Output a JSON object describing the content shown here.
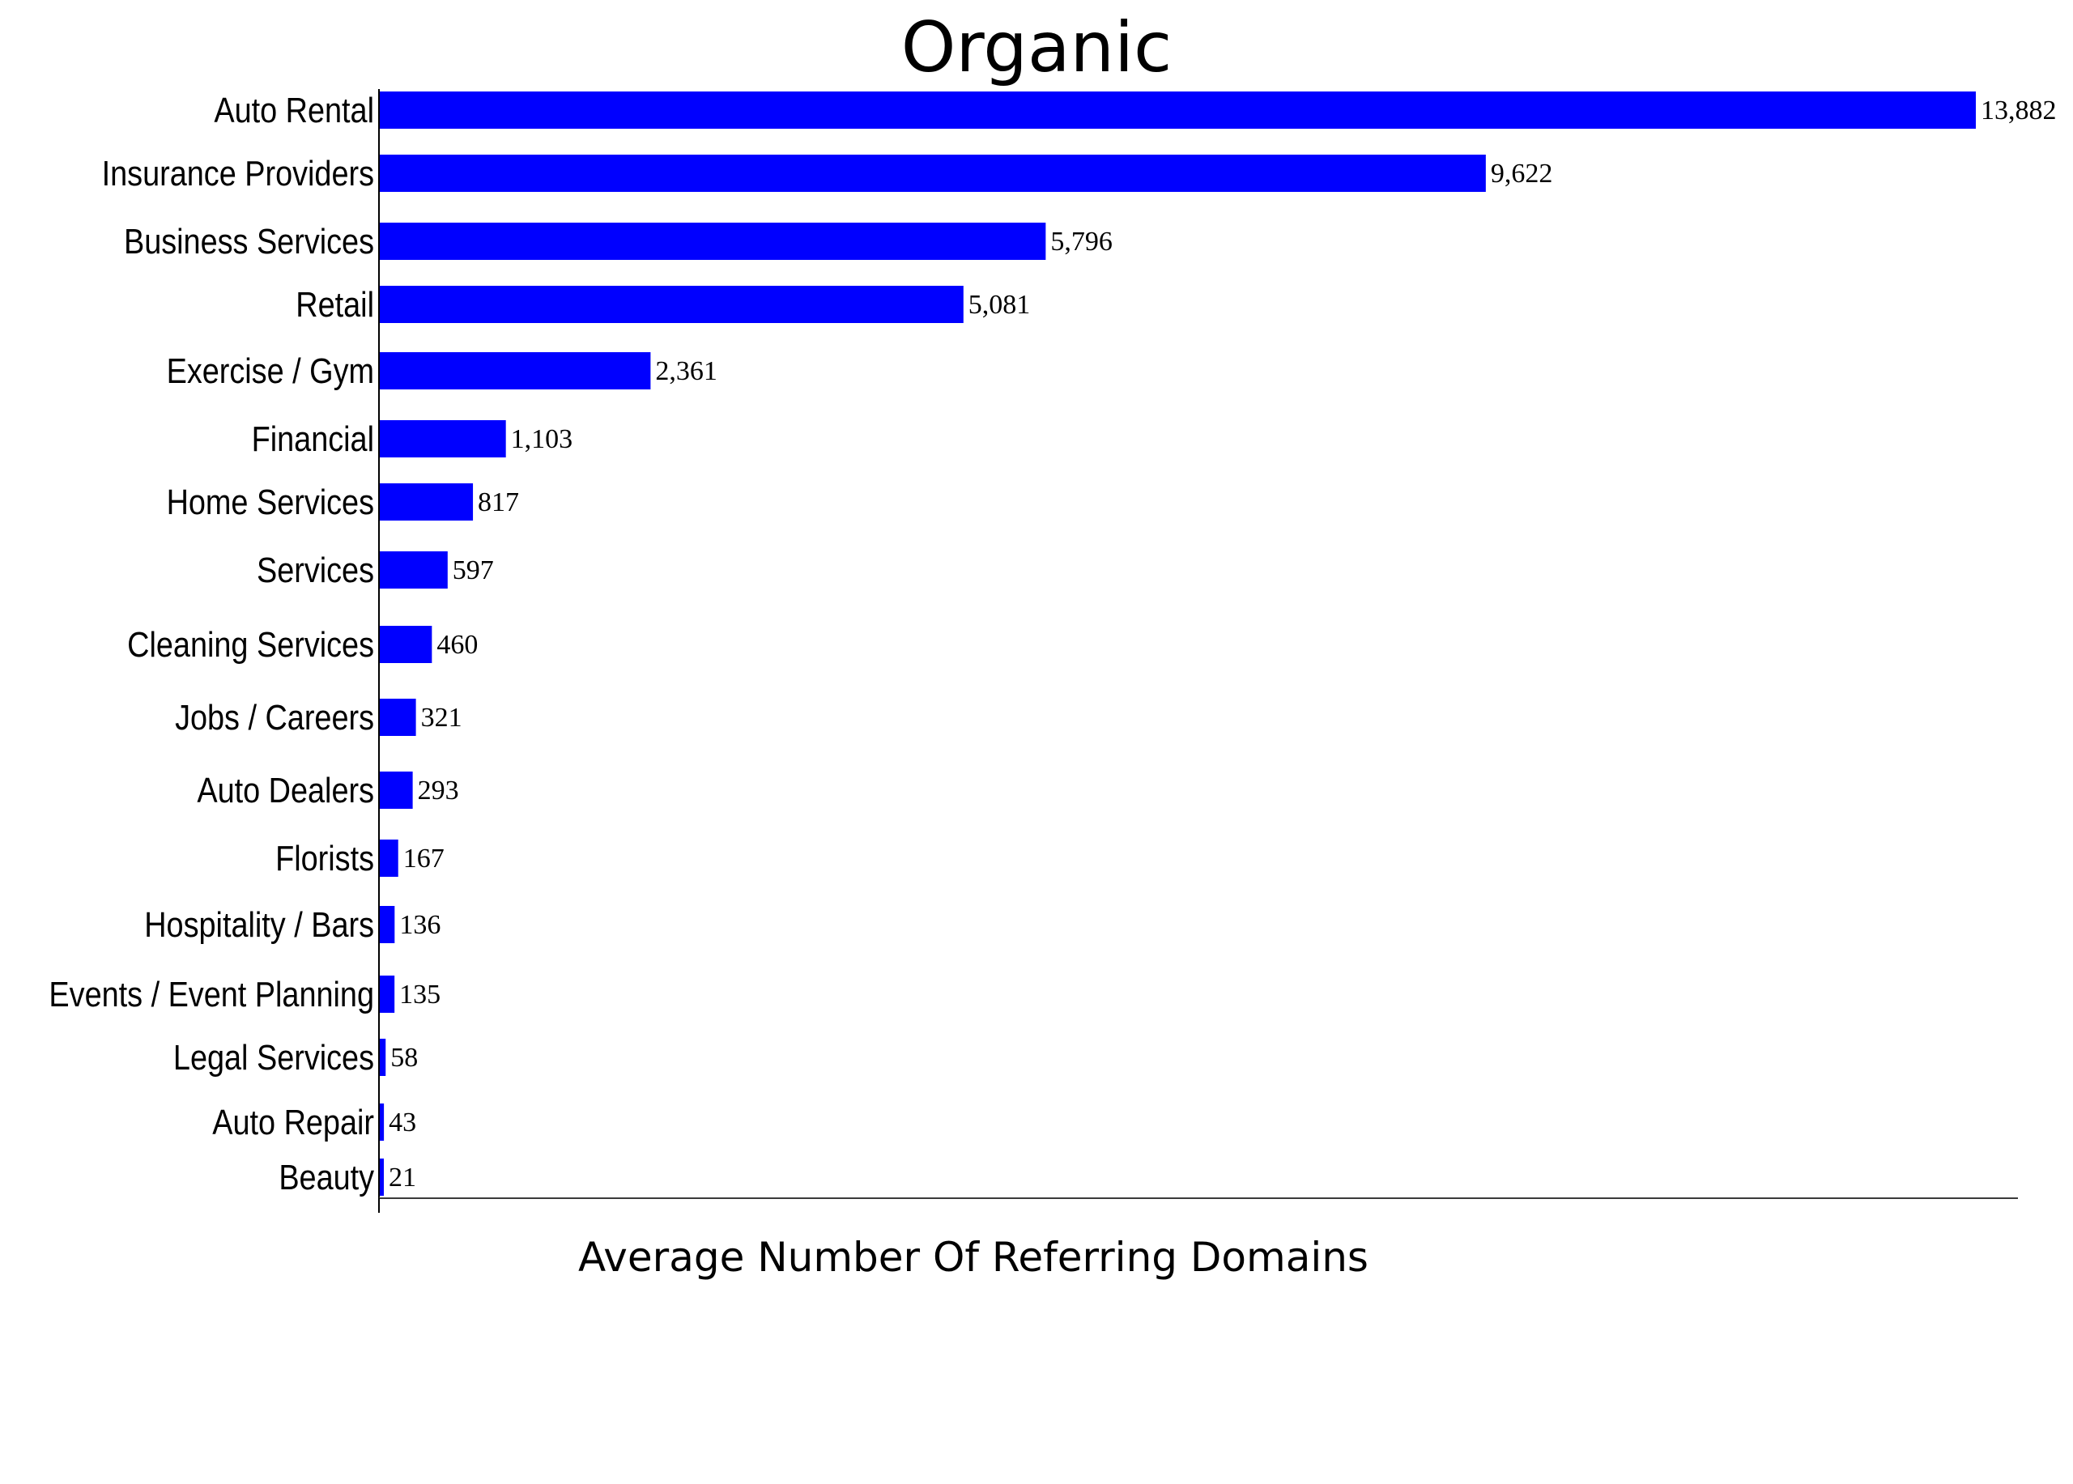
{
  "chart_data": {
    "type": "bar",
    "orientation": "horizontal",
    "title": "Organic",
    "xlabel": "Average Number Of Referring Domains",
    "ylabel": "",
    "bar_color": "#0000ff",
    "grid": false,
    "xlim": [
      0,
      14000
    ],
    "categories": [
      "Auto Rental",
      "Insurance Providers",
      "Business Services",
      "Retail",
      "Exercise / Gym",
      "Financial",
      "Home Services",
      "Services",
      "Cleaning Services",
      "Jobs / Careers",
      "Auto Dealers",
      "Florists",
      "Hospitality / Bars",
      "Events / Event Planning",
      "Legal Services",
      "Auto Repair",
      "Beauty"
    ],
    "values": [
      13882,
      9622,
      5796,
      5081,
      2361,
      1103,
      817,
      597,
      460,
      321,
      293,
      167,
      136,
      135,
      58,
      43,
      21
    ],
    "value_labels": [
      "13,882",
      "9,622",
      "5,796",
      "5,081",
      "2,361",
      "1,103",
      "817",
      "597",
      "460",
      "321",
      "293",
      "167",
      "136",
      "135",
      "58",
      "43",
      "21"
    ]
  }
}
